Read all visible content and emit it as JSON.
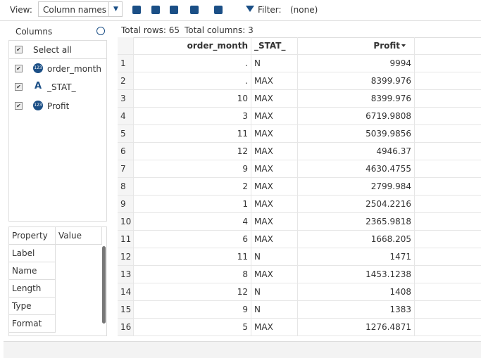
{
  "toolbar": {
    "view_label": "View:",
    "view_select": "Column names",
    "filter_label": "Filter:",
    "filter_value": "(none)"
  },
  "columns_panel": {
    "title": "Columns",
    "items": [
      {
        "name": "Select all"
      },
      {
        "name": "order_month",
        "icon": "123"
      },
      {
        "name": "_STAT_",
        "icon": "A"
      },
      {
        "name": "Profit",
        "icon": "123"
      }
    ]
  },
  "properties": {
    "header": [
      "Property",
      "Value"
    ],
    "rows": [
      "Label",
      "Name",
      "Length",
      "Type",
      "Format"
    ]
  },
  "table": {
    "total_rows": "Total rows: 65",
    "total_columns": "Total columns: 3",
    "columns": [
      "order_month",
      "_STAT_",
      "Profit"
    ],
    "rows": [
      [
        "1",
        ".",
        "N",
        "9994"
      ],
      [
        "2",
        ".",
        "MAX",
        "8399.976"
      ],
      [
        "3",
        "10",
        "MAX",
        "8399.976"
      ],
      [
        "4",
        "3",
        "MAX",
        "6719.9808"
      ],
      [
        "5",
        "11",
        "MAX",
        "5039.9856"
      ],
      [
        "6",
        "12",
        "MAX",
        "4946.37"
      ],
      [
        "7",
        "9",
        "MAX",
        "4630.4755"
      ],
      [
        "8",
        "2",
        "MAX",
        "2799.984"
      ],
      [
        "9",
        "1",
        "MAX",
        "2504.2216"
      ],
      [
        "10",
        "4",
        "MAX",
        "2365.9818"
      ],
      [
        "11",
        "6",
        "MAX",
        "1668.205"
      ],
      [
        "12",
        "11",
        "N",
        "1471"
      ],
      [
        "13",
        "8",
        "MAX",
        "1453.1238"
      ],
      [
        "14",
        "12",
        "N",
        "1408"
      ],
      [
        "15",
        "9",
        "N",
        "1383"
      ],
      [
        "16",
        "5",
        "MAX",
        "1276.4871"
      ]
    ]
  }
}
